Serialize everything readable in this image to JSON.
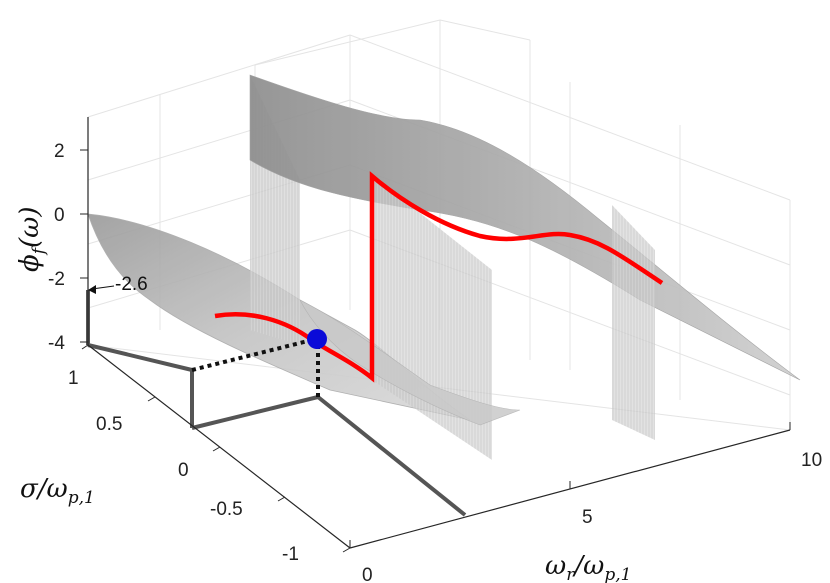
{
  "chart_data": {
    "type": "surface3d",
    "title": "",
    "axes": {
      "x": {
        "label_main": "ω",
        "label_sub": "r",
        "label_rest": "/ω",
        "label_sub2": "p,1",
        "ticks": [
          "0",
          "5",
          "10"
        ],
        "range": [
          0,
          10
        ]
      },
      "y": {
        "label_main": "σ/ω",
        "label_sub": "p,1",
        "ticks": [
          "-1",
          "-0.5",
          "0",
          "0.5",
          "1"
        ],
        "range": [
          -1,
          1
        ]
      },
      "z": {
        "label_main": "ϕ",
        "label_sub": "f",
        "label_rest": "(ω)",
        "ticks": [
          "-4",
          "-2",
          "0",
          "2"
        ],
        "range": [
          -4,
          3
        ]
      }
    },
    "surface_color": "#b8b8b8",
    "grid": true,
    "series": [
      {
        "color": "#ff0000",
        "description_points": [
          {
            "x": 0.9,
            "sigma": 0,
            "z": -2.6
          },
          {
            "x": 2.0,
            "sigma": 0,
            "z": -2.6
          },
          {
            "x": 2.9,
            "sigma": 0,
            "z": -3.1
          },
          {
            "x": 2.9,
            "sigma": 0,
            "z": 2.0
          },
          {
            "x": 4.5,
            "sigma": 0,
            "z": 0.6
          },
          {
            "x": 5.5,
            "sigma": 0,
            "z": 0.3
          },
          {
            "x": 6.5,
            "sigma": 0,
            "z": 0.2
          },
          {
            "x": 8.5,
            "sigma": 0,
            "z": -1.2
          }
        ]
      }
    ],
    "marker": {
      "x": 1.9,
      "sigma": 0,
      "z": -2.6,
      "color": "#0a0ad8"
    },
    "annotation": {
      "text": "-2.6",
      "z": -2.6
    }
  }
}
